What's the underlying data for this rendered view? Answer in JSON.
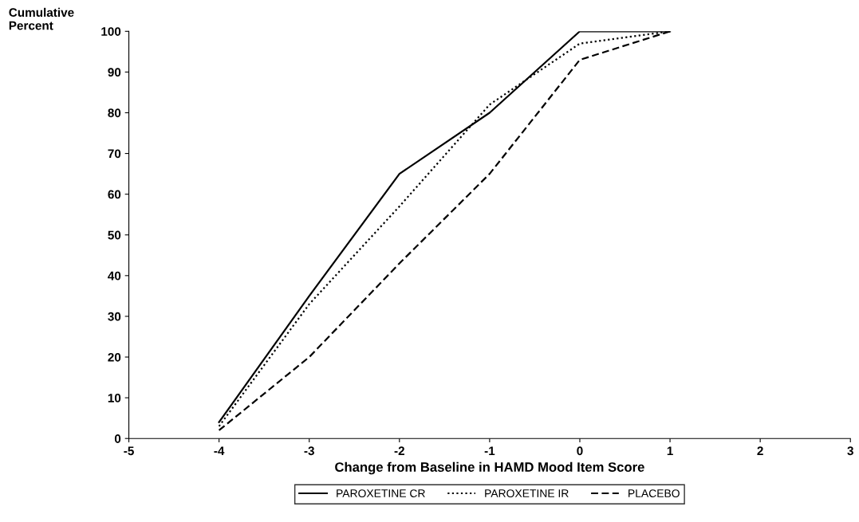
{
  "chart_data": {
    "type": "line",
    "ylabel": "Cumulative\nPercent",
    "xlabel": "Change from Baseline in HAMD Mood Item Score",
    "x": [
      -4,
      -3,
      -2,
      -1,
      0,
      1
    ],
    "series": [
      {
        "name": "PAROXETINE CR",
        "color": "#000000",
        "line_style": "solid",
        "values": [
          4,
          35,
          65,
          80,
          100,
          100
        ]
      },
      {
        "name": "PAROXETINE IR",
        "color": "#000000",
        "line_style": "dotted",
        "values": [
          3,
          33,
          57,
          82,
          97,
          100
        ]
      },
      {
        "name": "PLACEBO",
        "color": "#000000",
        "line_style": "dashed",
        "values": [
          2,
          20,
          43,
          65,
          93,
          100
        ]
      }
    ],
    "xlim": [
      -5,
      3
    ],
    "xticks": [
      -5,
      -4,
      -3,
      -2,
      -1,
      0,
      1,
      2,
      3
    ],
    "ylim": [
      0,
      100
    ],
    "yticks": [
      0,
      10,
      20,
      30,
      40,
      50,
      60,
      70,
      80,
      90,
      100
    ],
    "grid": false,
    "legend": "bottom",
    "marker": "none"
  }
}
